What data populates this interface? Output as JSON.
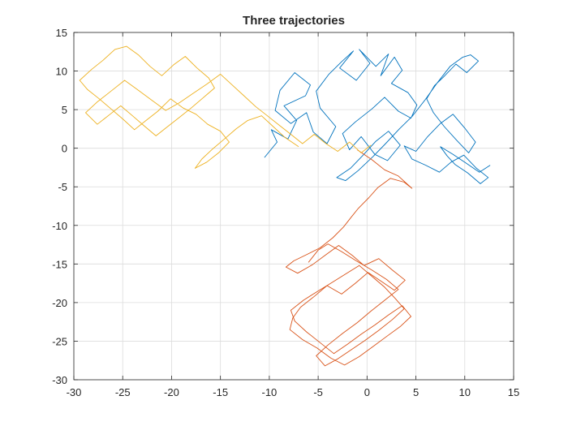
{
  "chart_data": {
    "type": "line",
    "title": "Three trajectories",
    "xlabel": "",
    "ylabel": "",
    "xlim": [
      -30,
      15
    ],
    "ylim": [
      -30,
      15
    ],
    "xticks": [
      -30,
      -25,
      -20,
      -15,
      -10,
      -5,
      0,
      5,
      10,
      15
    ],
    "yticks": [
      -30,
      -25,
      -20,
      -15,
      -10,
      -5,
      0,
      5,
      10,
      15
    ],
    "grid": true,
    "series": [
      {
        "color": "#0072BD",
        "x": [
          -10.5,
          -9.2,
          -9.8,
          -8.1,
          -7.2,
          -8.5,
          -6.3,
          -5.8,
          -7.4,
          -8.9,
          -9.4,
          -7.8,
          -6.2,
          -5.5,
          -4.1,
          -3.2,
          -4.8,
          -5.2,
          -3.9,
          -2.6,
          -1.4,
          -2.8,
          -1.1,
          0.3,
          -0.8,
          0.9,
          2.2,
          1.4,
          2.8,
          3.6,
          2.5,
          4.2,
          5.1,
          4.5,
          3.2,
          1.8,
          0.5,
          -1.2,
          -2.5,
          -1.8,
          -0.6,
          0.8,
          2.1,
          3.4,
          2.2,
          0.9,
          -0.4,
          -1.7,
          -3.1,
          -2.2,
          -0.9,
          0.6,
          1.9,
          3.3,
          4.6,
          5.9,
          7.2,
          8.5,
          9.8,
          10.6,
          11.4,
          10.2,
          9.1,
          7.8,
          6.9,
          6.1,
          6.8,
          7.9,
          9.2,
          10.4,
          11.1,
          10.0,
          8.8,
          7.5,
          6.2,
          5.0,
          3.8,
          4.6,
          6.0,
          7.4,
          8.6,
          9.9,
          11.2,
          12.4,
          11.6,
          10.3,
          9.0,
          8.2,
          7.5,
          8.8,
          10.1,
          11.5,
          12.6
        ],
        "y": [
          -1.2,
          0.8,
          2.4,
          1.2,
          3.6,
          5.5,
          6.8,
          8.2,
          9.8,
          7.5,
          4.9,
          3.2,
          4.6,
          2.1,
          0.6,
          2.8,
          5.2,
          7.4,
          9.6,
          11.2,
          12.6,
          10.4,
          8.8,
          11.0,
          12.8,
          10.6,
          12.2,
          9.4,
          11.8,
          10.1,
          8.4,
          7.2,
          5.6,
          3.9,
          4.8,
          6.6,
          5.1,
          3.4,
          1.9,
          -0.2,
          1.5,
          -0.8,
          -1.6,
          0.4,
          2.2,
          0.9,
          -0.9,
          -2.6,
          -3.8,
          -4.2,
          -2.9,
          -1.1,
          0.6,
          2.5,
          4.1,
          6.2,
          8.5,
          10.6,
          11.8,
          12.1,
          11.3,
          9.8,
          10.9,
          9.2,
          8.1,
          6.4,
          4.6,
          2.8,
          1.0,
          -0.6,
          0.8,
          2.6,
          4.4,
          3.2,
          1.5,
          -0.4,
          0.3,
          -1.4,
          -2.2,
          -3.1,
          -1.8,
          -0.9,
          -2.6,
          -3.8,
          -4.6,
          -3.2,
          -2.1,
          -1.0,
          0.2,
          -0.8,
          -1.9,
          -3.1,
          -2.2
        ]
      },
      {
        "color": "#D95319",
        "x": [
          -1.0,
          0.5,
          1.8,
          3.2,
          4.6,
          3.8,
          2.4,
          1.1,
          0.2,
          -0.9,
          -1.6,
          -2.4,
          -3.5,
          -4.8,
          -6.2,
          -7.5,
          -8.3,
          -7.1,
          -5.6,
          -4.2,
          -2.9,
          -1.5,
          -0.3,
          1.2,
          2.6,
          3.9,
          2.8,
          1.4,
          0.1,
          -1.2,
          -2.6,
          -4.1,
          -5.4,
          -6.8,
          -7.6,
          -7.9,
          -6.6,
          -5.1,
          -3.7,
          -2.3,
          -0.8,
          0.7,
          2.1,
          3.4,
          4.5,
          3.6,
          2.2,
          0.8,
          -0.6,
          -2.0,
          -3.4,
          -4.8,
          -6.2,
          -7.4,
          -7.8,
          -6.5,
          -5.0,
          -3.6,
          -2.2,
          -0.8,
          0.5,
          1.8,
          2.9,
          3.8,
          2.6,
          1.2,
          -0.2,
          -1.6,
          -3.0,
          -4.3,
          -5.2,
          -4.0,
          -2.5,
          -1.0,
          0.4,
          1.9,
          3.2,
          2.0,
          0.5,
          -1.1,
          -2.6,
          -4.0,
          -5.0,
          -6.0
        ],
        "y": [
          -0.2,
          -1.5,
          -2.8,
          -3.6,
          -5.2,
          -4.4,
          -3.9,
          -5.1,
          -6.4,
          -7.8,
          -8.9,
          -10.2,
          -11.6,
          -12.9,
          -13.8,
          -14.6,
          -15.4,
          -16.2,
          -15.1,
          -13.8,
          -12.6,
          -13.9,
          -15.2,
          -14.3,
          -15.8,
          -17.1,
          -18.4,
          -17.2,
          -16.1,
          -17.5,
          -18.9,
          -17.8,
          -19.2,
          -20.6,
          -22.0,
          -23.5,
          -24.8,
          -25.9,
          -27.2,
          -28.1,
          -27.0,
          -25.6,
          -24.3,
          -23.1,
          -21.8,
          -20.4,
          -21.6,
          -22.9,
          -24.1,
          -25.4,
          -26.6,
          -25.2,
          -23.8,
          -22.4,
          -21.0,
          -19.7,
          -18.5,
          -17.4,
          -16.3,
          -15.2,
          -16.6,
          -18.0,
          -19.5,
          -20.8,
          -22.2,
          -23.6,
          -24.9,
          -26.1,
          -27.3,
          -28.2,
          -26.9,
          -25.5,
          -24.0,
          -22.6,
          -21.1,
          -19.6,
          -18.3,
          -17.0,
          -15.8,
          -14.6,
          -13.4,
          -12.4,
          -13.2,
          -14.8
        ]
      },
      {
        "color": "#EDB120",
        "x": [
          -7.0,
          -8.4,
          -9.6,
          -10.8,
          -12.2,
          -13.4,
          -14.6,
          -15.8,
          -16.9,
          -17.6,
          -16.4,
          -15.2,
          -14.1,
          -15.0,
          -16.3,
          -17.5,
          -18.8,
          -20.1,
          -21.4,
          -22.6,
          -23.8,
          -25.0,
          -26.2,
          -27.4,
          -28.6,
          -29.4,
          -28.2,
          -27.0,
          -25.8,
          -24.6,
          -23.4,
          -22.2,
          -21.0,
          -19.8,
          -18.6,
          -17.4,
          -16.2,
          -15.6,
          -16.8,
          -18.0,
          -19.2,
          -20.4,
          -21.6,
          -22.8,
          -24.0,
          -25.2,
          -26.4,
          -27.6,
          -28.8,
          -27.6,
          -26.2,
          -24.8,
          -23.4,
          -22.0,
          -20.6,
          -19.2,
          -17.8,
          -16.4,
          -15.0,
          -13.8,
          -12.6,
          -11.4,
          -10.2,
          -9.0,
          -7.8,
          -6.6,
          -5.4,
          -4.2,
          -3.0,
          -1.8,
          -0.6,
          0.4
        ],
        "y": [
          0.2,
          1.4,
          2.8,
          4.2,
          3.6,
          2.5,
          1.2,
          -0.1,
          -1.4,
          -2.6,
          -1.8,
          -0.6,
          0.8,
          2.2,
          3.1,
          4.4,
          5.2,
          6.4,
          4.8,
          3.6,
          2.4,
          3.8,
          5.1,
          6.4,
          7.6,
          8.8,
          10.2,
          11.4,
          12.8,
          13.2,
          12.1,
          10.6,
          9.4,
          10.8,
          11.9,
          10.4,
          9.1,
          7.8,
          6.5,
          5.2,
          4.0,
          2.8,
          1.6,
          2.9,
          4.2,
          5.5,
          4.3,
          3.1,
          4.6,
          6.0,
          7.4,
          8.8,
          7.5,
          6.2,
          4.9,
          5.9,
          7.1,
          8.3,
          9.6,
          8.2,
          6.8,
          5.4,
          4.2,
          3.0,
          1.8,
          0.6,
          1.8,
          0.6,
          -0.4,
          0.8,
          -0.6,
          0.4
        ]
      }
    ]
  }
}
